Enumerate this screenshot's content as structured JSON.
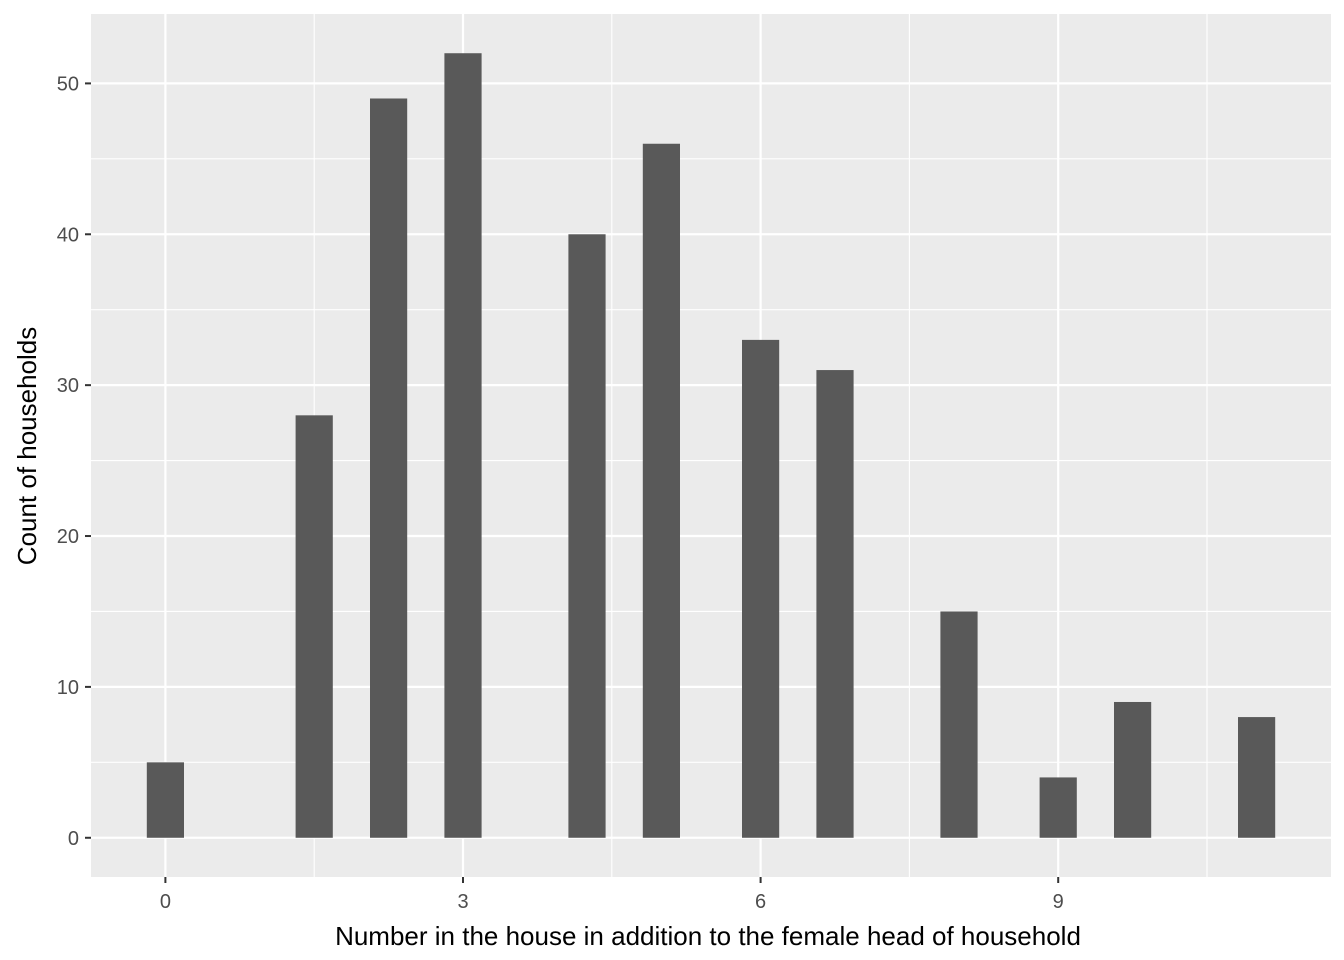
{
  "chart_data": {
    "type": "bar",
    "title": "",
    "xlabel": "Number in the house in addition to the female head of household",
    "ylabel": "Count of households",
    "x": [
      0,
      1.5,
      2.25,
      3,
      4.25,
      5,
      6,
      6.75,
      8,
      9,
      9.75,
      11
    ],
    "values": [
      5,
      28,
      49,
      52,
      40,
      46,
      33,
      31,
      15,
      4,
      9,
      8
    ],
    "xlim": [
      -0.75,
      11.75
    ],
    "ylim": [
      -2.6,
      54.6
    ],
    "x_ticks": [
      0,
      3,
      6,
      9
    ],
    "x_tick_labels": [
      "0",
      "3",
      "6",
      "9"
    ],
    "y_ticks": [
      0,
      10,
      20,
      30,
      40,
      50
    ],
    "y_tick_labels": [
      "0",
      "10",
      "20",
      "30",
      "40",
      "50"
    ],
    "bar_width": 0.375,
    "grid": true,
    "legend": "none",
    "colors": {
      "panel_background": "#EBEBEB",
      "grid_major": "#FFFFFF",
      "bar_fill": "#595959",
      "tick_label": "#4D4D4D",
      "axis_title": "#000000"
    }
  }
}
